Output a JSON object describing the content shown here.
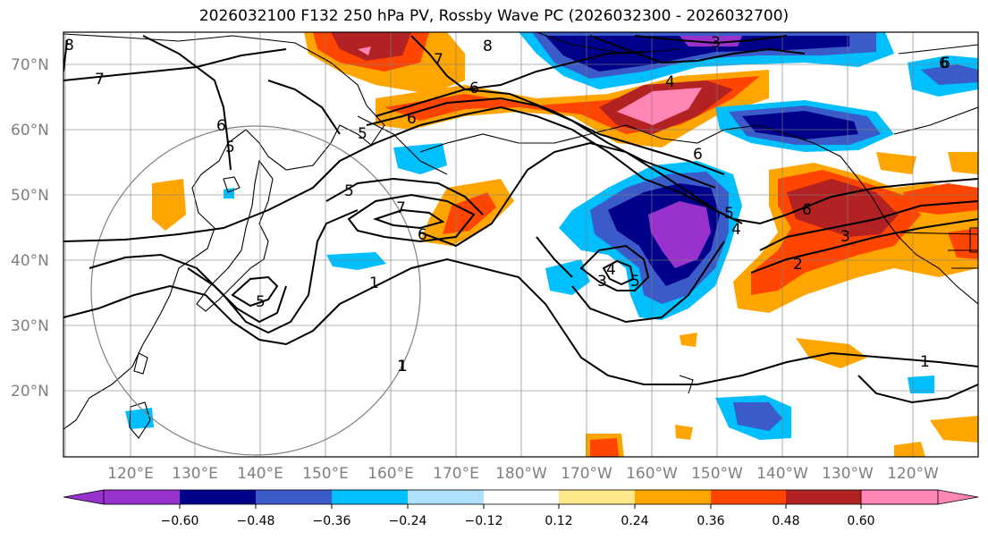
{
  "title": "2026032100 F132 250 hPa PV, Rossby Wave PC (2026032300 - 2026032700)",
  "latitudes": [
    "70°N",
    "60°N",
    "50°N",
    "40°N",
    "30°N",
    "20°N"
  ],
  "longitudes": [
    "120°E",
    "130°E",
    "140°E",
    "150°E",
    "160°E",
    "170°E",
    "180°W",
    "170°W",
    "160°W",
    "150°W",
    "140°W",
    "130°W",
    "120°W"
  ],
  "colorbar": {
    "colors": [
      "#9932cc",
      "#00008b",
      "#3a5bc8",
      "#00bfff",
      "#b0e0ff",
      "#ffffff",
      "#ffe88a",
      "#ffa500",
      "#ff4500",
      "#b22222",
      "#ff85b4"
    ],
    "tick_labels": [
      "−0.60",
      "−0.48",
      "−0.36",
      "−0.24",
      "−0.12",
      "0.12",
      "0.24",
      "0.36",
      "0.48",
      "0.60"
    ]
  },
  "contour_labels": [
    "8",
    "7",
    "8",
    "3",
    "6",
    "7",
    "6",
    "4",
    "6",
    "6",
    "5",
    "5",
    "6",
    "6",
    "5",
    "7",
    "6",
    "5",
    "4",
    "1",
    "4",
    "3",
    "5",
    "5",
    "6",
    "3",
    "2",
    "1",
    "1",
    "1"
  ]
}
